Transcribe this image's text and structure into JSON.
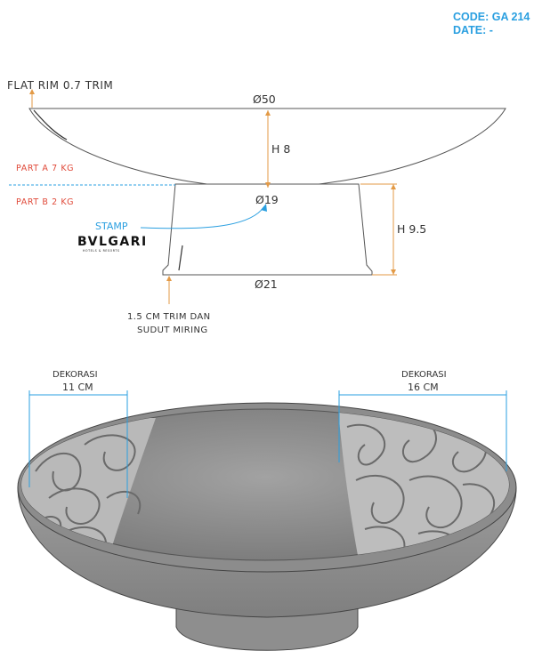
{
  "header": {
    "code": "CODE: GA 214",
    "date": "DATE: -"
  },
  "top_view": {
    "rim_label": "FLAT RIM 0.7 TRIM",
    "top_diameter": "Ø50",
    "height_bowl": "H 8",
    "part_a": "PART A 7 KG",
    "part_b": "PART B 2 KG",
    "stamp_label": "STAMP",
    "logo_text": "BVLGARI",
    "logo_sub": "HOTELS & RESORTS",
    "base_top_diameter": "Ø19",
    "base_height": "H 9.5",
    "base_bottom_diameter": "Ø21",
    "trim_note_line1": "1.5 CM TRIM DAN",
    "trim_note_line2": "SUDUT MIRING"
  },
  "bottom_view": {
    "left_decoration_label": "DEKORASI",
    "left_decoration_size": "11 CM",
    "right_decoration_label": "DEKORASI",
    "right_decoration_size": "16 CM"
  },
  "colors": {
    "accent_orange": "#e39a46",
    "stamp_blue": "#2a9fe0",
    "part_red": "#e04a3a",
    "dimension_blue": "#2a9fe0",
    "stone_gray": "#8a8a8a"
  }
}
